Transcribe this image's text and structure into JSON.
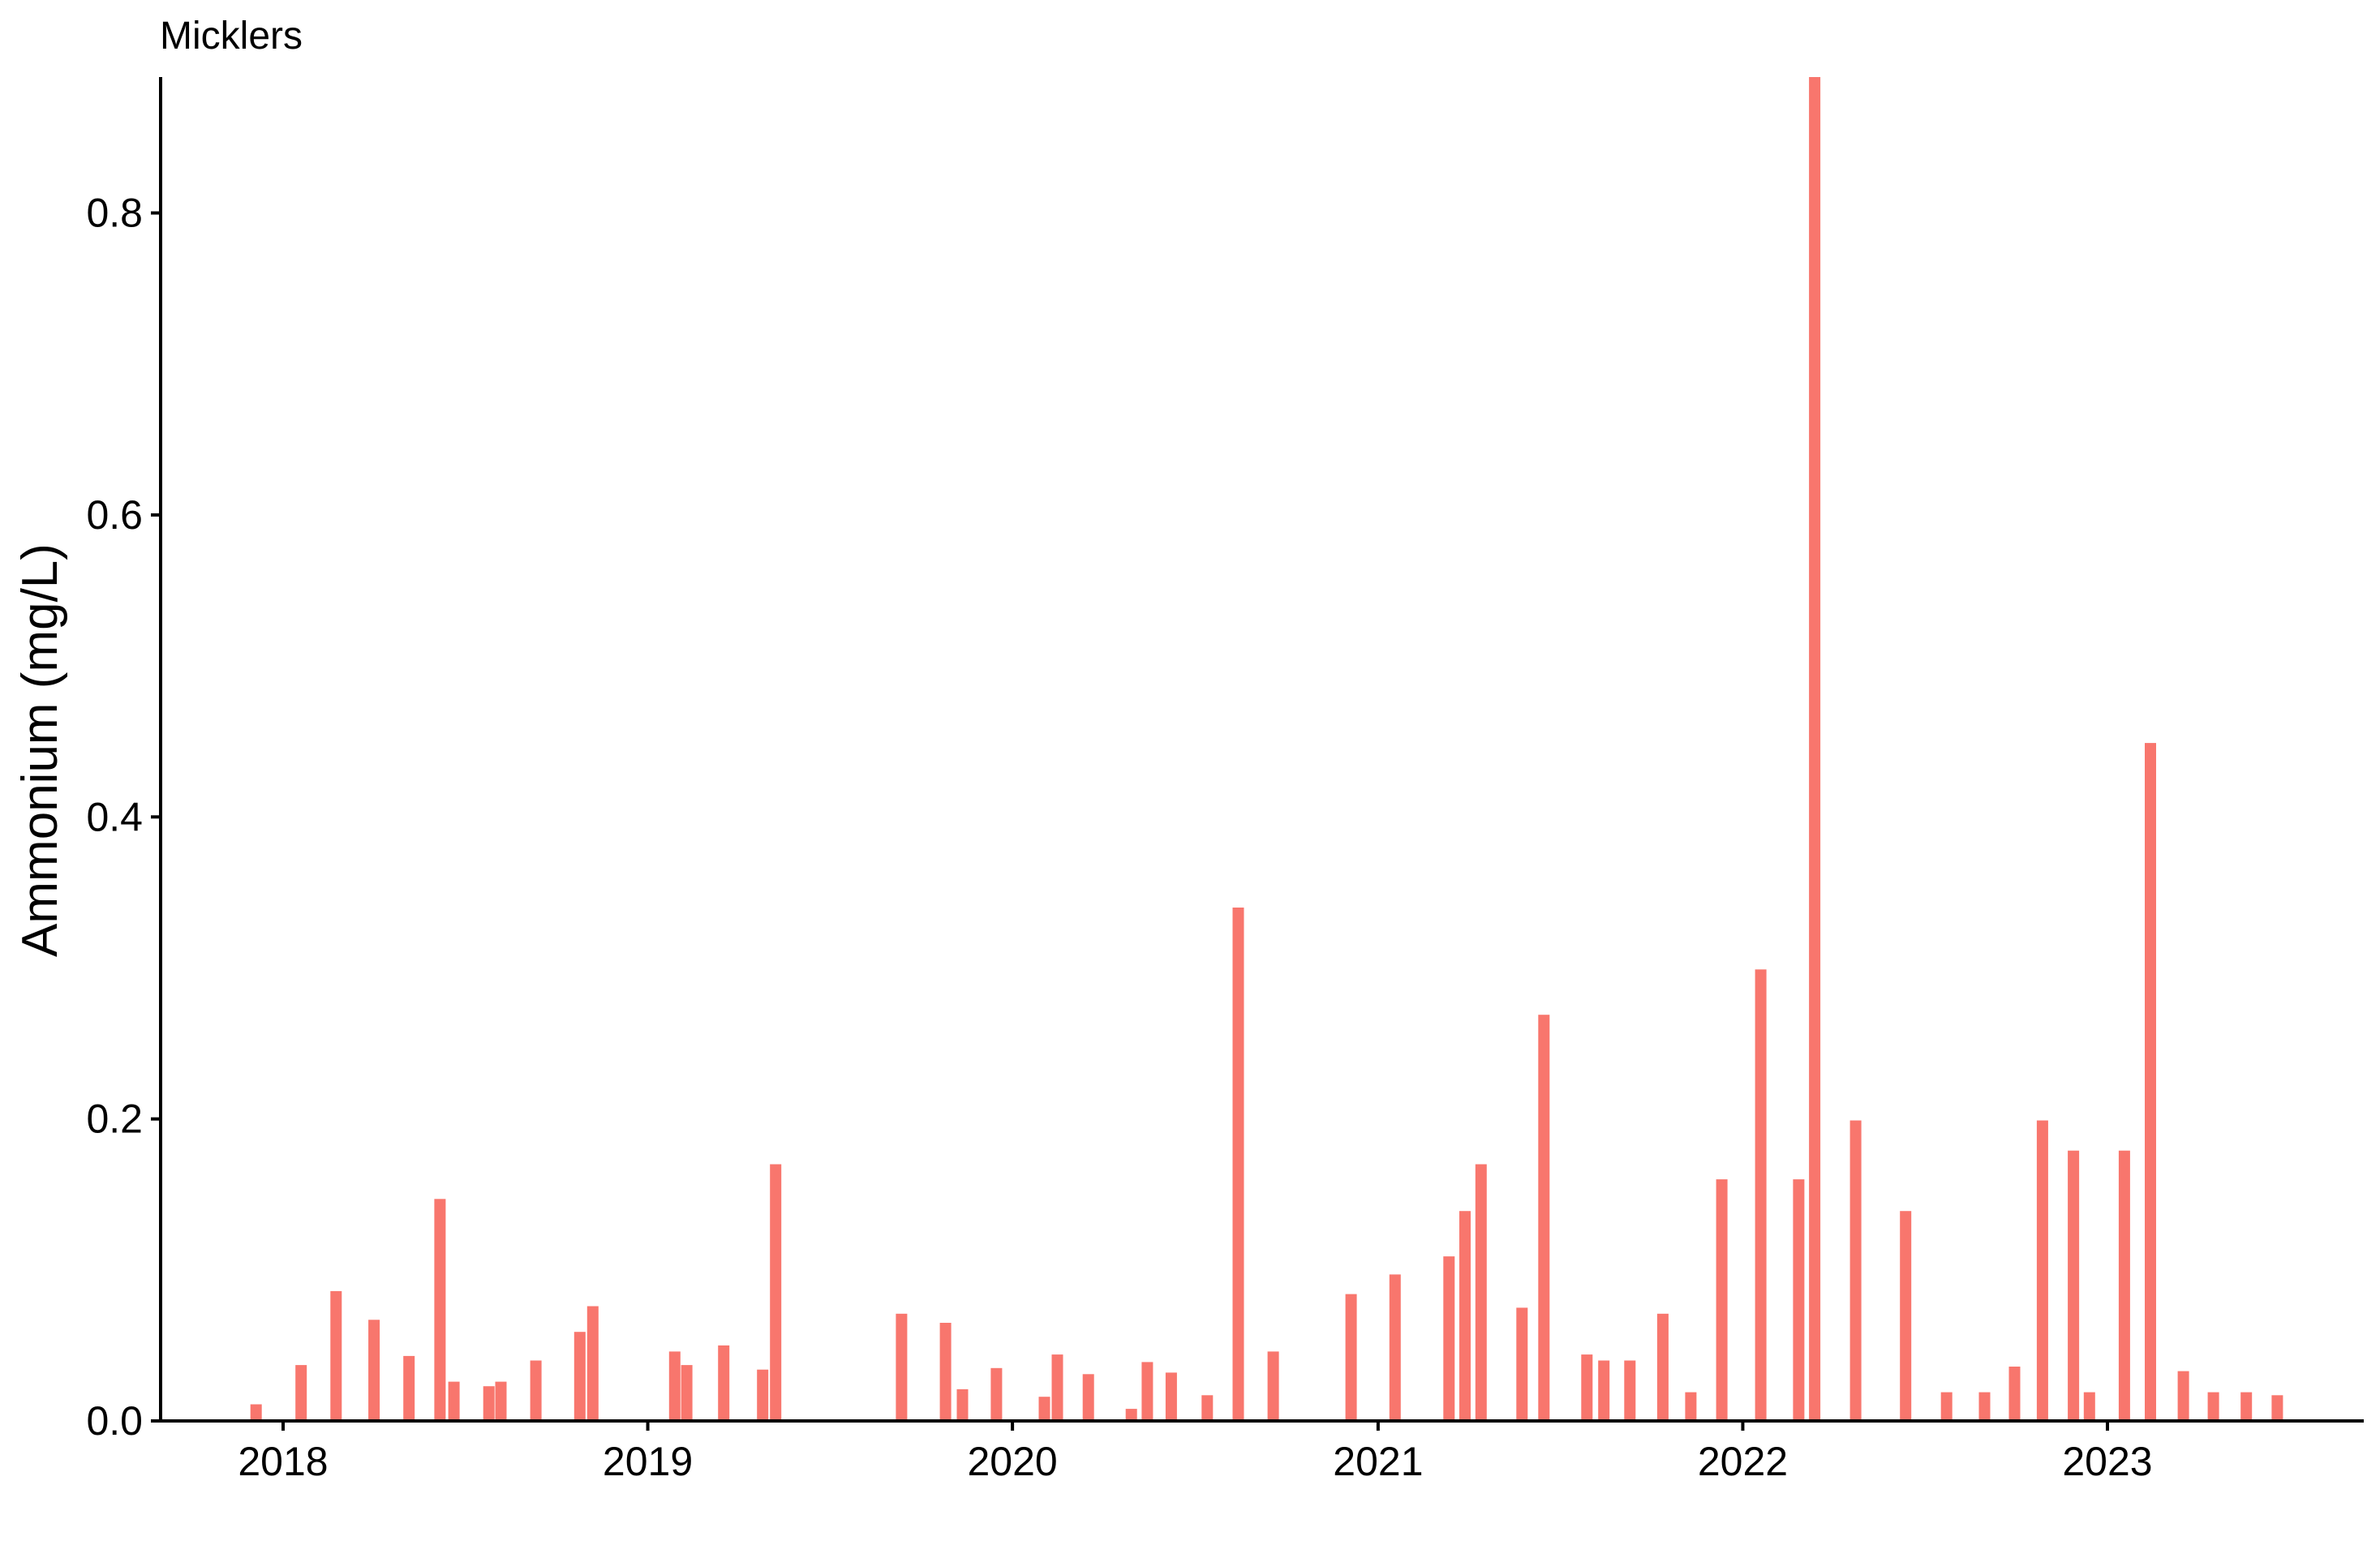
{
  "chart_data": {
    "type": "bar",
    "title": "Micklers",
    "xlabel": "",
    "ylabel": "Ammonium (mg/L)",
    "x_axis": {
      "type": "date",
      "ticks": [
        "2018",
        "2019",
        "2020",
        "2021",
        "2022",
        "2023"
      ]
    },
    "y_axis": {
      "range": [
        0,
        0.89
      ],
      "ticks": [
        "0.0",
        "0.2",
        "0.4",
        "0.6",
        "0.8"
      ],
      "tick_values": [
        0,
        0.2,
        0.4,
        0.6,
        0.8
      ]
    },
    "grid": false,
    "legend": "none",
    "bar_color": "#F8766D",
    "series": [
      {
        "x": [
          "2017-12-05",
          "2018-01-19",
          "2018-02-23",
          "2018-04-02",
          "2018-05-07",
          "2018-06-07",
          "2018-06-21",
          "2018-07-26",
          "2018-08-07",
          "2018-09-11",
          "2018-10-25",
          "2018-11-07",
          "2019-01-28",
          "2019-02-09",
          "2019-03-18",
          "2019-04-26",
          "2019-05-09",
          "2019-09-12",
          "2019-10-26",
          "2019-11-12",
          "2019-12-16",
          "2020-02-02",
          "2020-02-15",
          "2020-03-17",
          "2020-04-29",
          "2020-05-15",
          "2020-06-08",
          "2020-07-14",
          "2020-08-14",
          "2020-09-18",
          "2020-12-05",
          "2021-01-18",
          "2021-03-13",
          "2021-03-29",
          "2021-04-14",
          "2021-05-25",
          "2021-06-16",
          "2021-07-29",
          "2021-08-15",
          "2021-09-10",
          "2021-10-13",
          "2021-11-10",
          "2021-12-11",
          "2022-01-19",
          "2022-02-26",
          "2022-03-14",
          "2022-04-24",
          "2022-06-13",
          "2022-07-24",
          "2022-08-31",
          "2022-09-30",
          "2022-10-28",
          "2022-11-28",
          "2022-12-14",
          "2023-01-18",
          "2023-02-13",
          "2023-03-18",
          "2023-04-17",
          "2023-05-20",
          "2023-06-20"
        ],
        "values": [
          0.011,
          0.037,
          0.086,
          0.067,
          0.043,
          0.147,
          0.026,
          0.023,
          0.026,
          0.04,
          0.059,
          0.076,
          0.046,
          0.037,
          0.05,
          0.034,
          0.17,
          0.071,
          0.065,
          0.021,
          0.035,
          0.016,
          0.044,
          0.031,
          0.008,
          0.039,
          0.032,
          0.017,
          0.34,
          0.046,
          0.084,
          0.097,
          0.109,
          0.139,
          0.17,
          0.075,
          0.269,
          0.044,
          0.04,
          0.04,
          0.071,
          0.019,
          0.16,
          0.299,
          0.16,
          0.89,
          0.199,
          0.139,
          0.019,
          0.019,
          0.036,
          0.199,
          0.179,
          0.019,
          0.179,
          0.449,
          0.033,
          0.019,
          0.019,
          0.017
        ]
      }
    ]
  }
}
